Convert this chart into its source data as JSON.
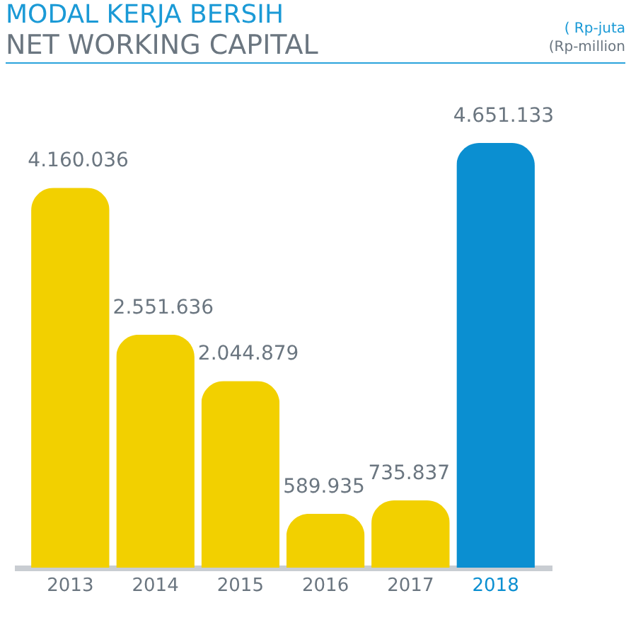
{
  "chart_data": {
    "type": "bar",
    "title": "MODAL KERJA BERSIH",
    "subtitle": "NET WORKING CAPITAL",
    "annotations": [
      "( Rp-juta",
      "(Rp-million"
    ],
    "categories": [
      "2013",
      "2014",
      "2015",
      "2016",
      "2017",
      "2018"
    ],
    "values": [
      4160036,
      2551636,
      2044879,
      589935,
      735837,
      4651133
    ],
    "colors": [
      "#f2d000",
      "#f2d000",
      "#f2d000",
      "#f2d000",
      "#f2d000",
      "#0b8fd1"
    ],
    "value_labels": [
      "4.160.036",
      "2.551.636",
      "2.044.879",
      "589.935",
      "735.837",
      "4.651.133"
    ],
    "tick_labels": "x"
  }
}
